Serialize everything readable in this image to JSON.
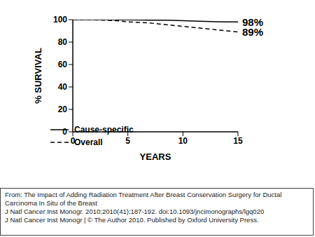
{
  "chart_data": {
    "type": "line",
    "x_label": "YEARS",
    "y_label": "% SURVIVAL",
    "x": [
      0,
      1,
      2,
      3,
      4,
      5,
      6,
      7,
      8,
      9,
      10,
      11,
      12,
      13,
      14,
      15
    ],
    "series": [
      {
        "name": "Cause-specific",
        "color": "#000000",
        "line_style": "solid",
        "values": [
          100,
          100,
          100,
          100,
          99.9,
          99.8,
          99.7,
          99.6,
          99.5,
          99.3,
          99,
          98.8,
          98.5,
          98.2,
          98,
          98
        ]
      },
      {
        "name": "Overall",
        "color": "#000000",
        "line_style": "dashed",
        "values": [
          100,
          100,
          99.8,
          99.5,
          99,
          98,
          97.5,
          97,
          96,
          95,
          94,
          93,
          92,
          91,
          90,
          89
        ]
      }
    ],
    "xlim": [
      0,
      15
    ],
    "xticks": [
      0,
      5,
      10,
      15
    ],
    "ylim": [
      0,
      100
    ],
    "yticks": [
      0,
      20,
      40,
      60,
      80,
      100
    ],
    "grid": false,
    "legend": "lower left",
    "annotations": [
      {
        "text": "98%",
        "x": 15,
        "y": 98
      },
      {
        "text": "89%",
        "x": 15,
        "y": 89
      }
    ],
    "caption": [
      "From: The Impact of Adding Radiation Treatment After Breast Conservation Surgery for Ductal Carcinoma In Situ of the Breast",
      "J Natl Cancer Inst Monogr. 2010;2010(41):187-192. doi:10.1093/jncimonographs/lgq020",
      "J Natl Cancer Inst Monogr | © The Author 2010. Published by Oxford University Press."
    ]
  }
}
